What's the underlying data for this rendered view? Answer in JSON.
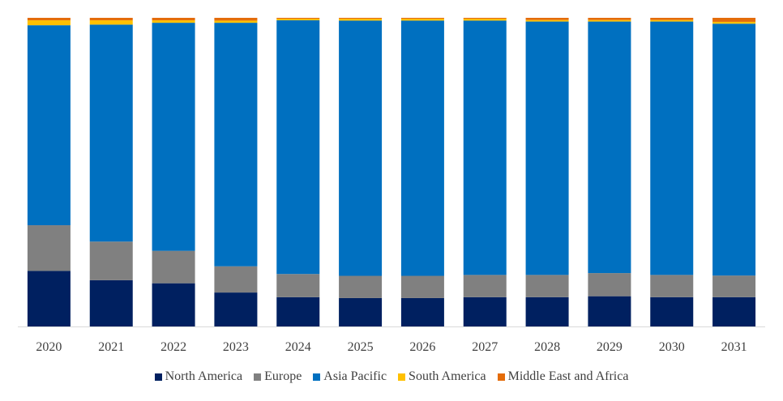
{
  "chart_data": {
    "type": "bar",
    "stacked": true,
    "normalized": true,
    "title": "",
    "xlabel": "",
    "ylabel": "",
    "ylim": [
      0,
      100
    ],
    "categories": [
      "2020",
      "2021",
      "2022",
      "2023",
      "2024",
      "2025",
      "2026",
      "2027",
      "2028",
      "2029",
      "2030",
      "2031"
    ],
    "series": [
      {
        "name": "North America",
        "color": "#002060",
        "values": [
          18,
          15,
          14,
          11,
          9.5,
          9.2,
          9.2,
          9.5,
          9.5,
          9.8,
          9.5,
          9.5
        ]
      },
      {
        "name": "Europe",
        "color": "#808080",
        "values": [
          14.8,
          12.5,
          10.5,
          8.5,
          7.5,
          7.2,
          7.2,
          7.2,
          7.2,
          7.5,
          7.2,
          7.0
        ]
      },
      {
        "name": "Asia Pacific",
        "color": "#0070C0",
        "values": [
          64.8,
          70.3,
          73.9,
          78.9,
          82.2,
          82.7,
          82.7,
          82.4,
          82.1,
          81.5,
          82.1,
          81.6
        ]
      },
      {
        "name": "South America",
        "color": "#FFC000",
        "values": [
          1.6,
          1.4,
          0.8,
          0.7,
          0.5,
          0.6,
          0.6,
          0.6,
          0.5,
          0.5,
          0.5,
          0.6
        ]
      },
      {
        "name": "Middle East and Africa",
        "color": "#E46C0A",
        "values": [
          0.8,
          0.8,
          0.8,
          0.9,
          0.3,
          0.3,
          0.3,
          0.3,
          0.7,
          0.7,
          0.7,
          1.3
        ]
      }
    ],
    "legend_position": "bottom",
    "grid": false
  }
}
